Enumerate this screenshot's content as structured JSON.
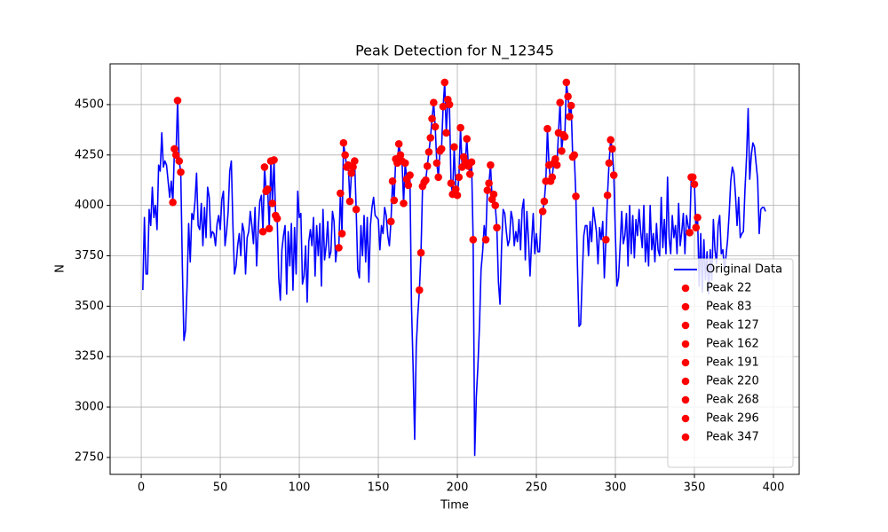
{
  "chart_data": {
    "type": "line",
    "title": "Peak Detection for N_12345",
    "xlabel": "Time",
    "ylabel": "N",
    "xlim": [
      -19.7,
      416.3
    ],
    "ylim": [
      2666,
      4702
    ],
    "xticks": [
      0,
      50,
      100,
      150,
      200,
      250,
      300,
      350,
      400
    ],
    "yticks": [
      2750,
      3000,
      3250,
      3500,
      3750,
      4000,
      4250,
      4500
    ],
    "grid": true,
    "legend": "lower right",
    "series": [
      {
        "name": "Original Data",
        "color": "#0000ff",
        "style": "line",
        "x": [
          1,
          2,
          3,
          4,
          5,
          6,
          7,
          8,
          9,
          10,
          11,
          12,
          13,
          14,
          15,
          16,
          17,
          18,
          19,
          20,
          21,
          22,
          23,
          24,
          25,
          26,
          27,
          28,
          29,
          30,
          31,
          32,
          33,
          34,
          35,
          36,
          37,
          38,
          39,
          40,
          41,
          42,
          43,
          44,
          45,
          46,
          47,
          48,
          49,
          50,
          51,
          52,
          53,
          54,
          55,
          56,
          57,
          58,
          59,
          60,
          61,
          62,
          63,
          64,
          65,
          66,
          67,
          68,
          69,
          70,
          71,
          72,
          73,
          74,
          75,
          76,
          77,
          78,
          79,
          80,
          81,
          82,
          83,
          84,
          85,
          86,
          87,
          88,
          89,
          90,
          91,
          92,
          93,
          94,
          95,
          96,
          97,
          98,
          99,
          100,
          101,
          102,
          103,
          104,
          105,
          106,
          107,
          108,
          109,
          110,
          111,
          112,
          113,
          114,
          115,
          116,
          117,
          118,
          119,
          120,
          121,
          122,
          123,
          124,
          125,
          126,
          127,
          128,
          129,
          130,
          131,
          132,
          133,
          134,
          135,
          136,
          137,
          138,
          139,
          140,
          141,
          142,
          143,
          144,
          145,
          146,
          147,
          148,
          149,
          150,
          151,
          152,
          153,
          154,
          155,
          156,
          157,
          158,
          159,
          160,
          161,
          162,
          163,
          164,
          165,
          166,
          167,
          168,
          169,
          170,
          171,
          172,
          173,
          174,
          175,
          176,
          177,
          178,
          179,
          180,
          181,
          182,
          183,
          184,
          185,
          186,
          187,
          188,
          189,
          190,
          191,
          192,
          193,
          194,
          195,
          196,
          197,
          198,
          199,
          200,
          201,
          202,
          203,
          204,
          205,
          206,
          207,
          208,
          209,
          210,
          211,
          212,
          213,
          214,
          215,
          216,
          217,
          218,
          219,
          220,
          221,
          222,
          223,
          224,
          225,
          226,
          227,
          228,
          229,
          230,
          231,
          232,
          233,
          234,
          235,
          236,
          237,
          238,
          239,
          240,
          241,
          242,
          243,
          244,
          245,
          246,
          247,
          248,
          249,
          250,
          251,
          252,
          253,
          254,
          255,
          256,
          257,
          258,
          259,
          260,
          261,
          262,
          263,
          264,
          265,
          266,
          267,
          268,
          269,
          270,
          271,
          272,
          273,
          274,
          275,
          276,
          277,
          278,
          279,
          280,
          281,
          282,
          283,
          284,
          285,
          286,
          287,
          288,
          289,
          290,
          291,
          292,
          293,
          294,
          295,
          296,
          297,
          298,
          299,
          300,
          301,
          302,
          303,
          304,
          305,
          306,
          307,
          308,
          309,
          310,
          311,
          312,
          313,
          314,
          315,
          316,
          317,
          318,
          319,
          320,
          321,
          322,
          323,
          324,
          325,
          326,
          327,
          328,
          329,
          330,
          331,
          332,
          333,
          334,
          335,
          336,
          337,
          338,
          339,
          340,
          341,
          342,
          343,
          344,
          345,
          346,
          347,
          348,
          349,
          350,
          351,
          352,
          353,
          354,
          355,
          356,
          357,
          358,
          359,
          360,
          361,
          362,
          363,
          364,
          365,
          366,
          367,
          368,
          369,
          370,
          371,
          372,
          373,
          374,
          375,
          376,
          377,
          378,
          379,
          380,
          381,
          382,
          383,
          384,
          385,
          386,
          387,
          388,
          389,
          390,
          391,
          392,
          393,
          394,
          395
        ],
        "values": [
          3580,
          3940,
          3660,
          3660,
          3980,
          3900,
          4090,
          3940,
          4000,
          3880,
          4200,
          4170,
          4360,
          4190,
          4220,
          4200,
          4120,
          4040,
          4120,
          4015,
          4280,
          4250,
          4520,
          4220,
          4165,
          3700,
          3330,
          3380,
          3600,
          3910,
          3720,
          3960,
          3930,
          4020,
          4160,
          3900,
          3880,
          4010,
          3800,
          3990,
          3840,
          4090,
          4040,
          3840,
          3870,
          3860,
          3800,
          3910,
          3950,
          3880,
          4030,
          4070,
          3800,
          3870,
          3970,
          4170,
          4220,
          3900,
          3660,
          3700,
          3800,
          3860,
          3750,
          3910,
          3870,
          3660,
          3840,
          3870,
          3970,
          3900,
          3810,
          3990,
          3700,
          3880,
          4020,
          4050,
          3870,
          4190,
          4070,
          4080,
          3885,
          4220,
          4010,
          4225,
          3950,
          3935,
          3640,
          3530,
          3780,
          3850,
          3900,
          3560,
          3870,
          3700,
          3910,
          3580,
          3890,
          3660,
          4070,
          3940,
          3960,
          3610,
          3650,
          3800,
          3520,
          3820,
          3880,
          3800,
          3940,
          3650,
          3900,
          3750,
          3910,
          3600,
          3980,
          3730,
          3800,
          3920,
          3740,
          3770,
          3970,
          3920,
          3720,
          3800,
          3790,
          4060,
          3860,
          4310,
          4250,
          4190,
          4200,
          4020,
          4160,
          4190,
          4220,
          3980,
          3680,
          3640,
          3900,
          3750,
          3950,
          3720,
          3940,
          3620,
          3900,
          3990,
          4040,
          3950,
          3940,
          3930,
          3780,
          3900,
          3860,
          3990,
          3950,
          3850,
          3800,
          3920,
          4120,
          4025,
          4230,
          4210,
          4305,
          4250,
          4220,
          4010,
          4210,
          4130,
          4100,
          4150,
          3500,
          3200,
          2840,
          3300,
          3460,
          3580,
          3765,
          4095,
          4115,
          4125,
          4195,
          4265,
          4335,
          4430,
          4510,
          4390,
          4210,
          4140,
          4270,
          4280,
          4490,
          4610,
          4360,
          4525,
          4500,
          4110,
          4055,
          4290,
          4080,
          4050,
          4140,
          4385,
          4190,
          4240,
          4215,
          4330,
          4195,
          4155,
          4215,
          3830,
          2760,
          3050,
          3200,
          3400,
          3680,
          3770,
          3900,
          3830,
          4075,
          4110,
          4200,
          4030,
          4055,
          4000,
          3890,
          3620,
          3510,
          3800,
          3980,
          3960,
          3870,
          3800,
          3830,
          3970,
          3930,
          3800,
          3870,
          3820,
          3930,
          3780,
          3980,
          4030,
          3730,
          3970,
          3830,
          3650,
          3820,
          3960,
          3760,
          3860,
          3770,
          3770,
          3960,
          3970,
          4020,
          4120,
          4380,
          4200,
          4120,
          4140,
          4210,
          4230,
          4200,
          4360,
          4510,
          4270,
          4350,
          4340,
          4610,
          4540,
          4440,
          4495,
          4240,
          4250,
          4045,
          3700,
          3400,
          3410,
          3640,
          3850,
          3900,
          3900,
          3750,
          3920,
          3820,
          3990,
          3930,
          3870,
          3710,
          3890,
          3830,
          3920,
          3640,
          3830,
          4050,
          4210,
          4325,
          4280,
          4150,
          3850,
          3600,
          3640,
          3800,
          3970,
          3810,
          3850,
          3960,
          3700,
          4000,
          3760,
          3950,
          3740,
          3930,
          3850,
          3980,
          3870,
          3790,
          4000,
          3720,
          3860,
          3700,
          4000,
          3780,
          3860,
          3720,
          3910,
          3780,
          3750,
          4040,
          3790,
          3930,
          3760,
          4140,
          3840,
          3760,
          3950,
          3840,
          3900,
          3760,
          4010,
          3800,
          3870,
          3960,
          3760,
          3950,
          3900,
          3865,
          4140,
          4140,
          4105,
          3890,
          3940,
          3600,
          3860,
          3570,
          3830,
          3630,
          3770,
          3560,
          3780,
          3630,
          3930,
          3780,
          3710,
          3900,
          3950,
          3760,
          3780,
          3680,
          3750,
          3830,
          3960,
          4120,
          4190,
          4160,
          4050,
          3900,
          4040,
          3840,
          3860,
          3870,
          4080,
          4240,
          4480,
          4130,
          4250,
          4310,
          4290,
          4210,
          4130,
          3860,
          3980,
          3990,
          3990,
          3970
        ]
      },
      {
        "name": "Peak 22",
        "color": "#ff0000",
        "style": "markers",
        "x": [
          20,
          21,
          22,
          23,
          24,
          25
        ],
        "values": [
          4015,
          4280,
          4250,
          4520,
          4220,
          4165
        ]
      },
      {
        "name": "Peak 83",
        "color": "#ff0000",
        "style": "markers",
        "x": [
          77,
          78,
          79,
          80,
          81,
          82,
          83,
          84,
          85,
          86
        ],
        "values": [
          3870,
          4190,
          4070,
          4080,
          3885,
          4220,
          4010,
          4225,
          3950,
          3935
        ]
      },
      {
        "name": "Peak 127",
        "color": "#ff0000",
        "style": "markers",
        "x": [
          125,
          126,
          127,
          128,
          129,
          130,
          131,
          132,
          133,
          134,
          135,
          136
        ],
        "values": [
          3790,
          4060,
          3860,
          4310,
          4250,
          4190,
          4200,
          4020,
          4160,
          4190,
          4220,
          3980
        ]
      },
      {
        "name": "Peak 162",
        "color": "#ff0000",
        "style": "markers",
        "x": [
          158,
          159,
          160,
          161,
          162,
          163,
          164,
          165,
          166,
          167,
          168,
          169,
          170
        ],
        "values": [
          3920,
          4120,
          4025,
          4230,
          4210,
          4305,
          4250,
          4220,
          4010,
          4210,
          4130,
          4100,
          4150
        ]
      },
      {
        "name": "Peak 191",
        "color": "#ff0000",
        "style": "markers",
        "x": [
          176,
          177,
          178,
          179,
          180,
          181,
          182,
          183,
          184,
          185,
          186,
          187,
          188,
          189,
          190,
          191,
          192,
          193,
          194,
          195,
          196,
          197,
          198,
          199,
          200,
          201,
          202,
          203,
          204,
          205,
          206,
          207,
          208,
          209
        ],
        "values": [
          3580,
          3765,
          4095,
          4115,
          4125,
          4195,
          4265,
          4335,
          4430,
          4510,
          4390,
          4210,
          4140,
          4270,
          4280,
          4490,
          4610,
          4360,
          4525,
          4500,
          4110,
          4055,
          4290,
          4080,
          4050,
          4140,
          4385,
          4190,
          4240,
          4215,
          4330,
          4195,
          4155,
          4215
        ]
      },
      {
        "name": "Peak 220",
        "color": "#ff0000",
        "style": "markers",
        "x": [
          210,
          218,
          219,
          220,
          221,
          222,
          223,
          224,
          225
        ],
        "values": [
          3830,
          3830,
          4075,
          4110,
          4200,
          4030,
          4055,
          4000,
          3890
        ]
      },
      {
        "name": "Peak 268",
        "color": "#ff0000",
        "style": "markers",
        "x": [
          254,
          255,
          256,
          257,
          258,
          259,
          260,
          261,
          262,
          263,
          264,
          265,
          266,
          267,
          268,
          269,
          270,
          271,
          272,
          273,
          274,
          275
        ],
        "values": [
          3970,
          4020,
          4120,
          4380,
          4200,
          4120,
          4140,
          4210,
          4230,
          4200,
          4360,
          4510,
          4270,
          4350,
          4340,
          4610,
          4540,
          4440,
          4495,
          4240,
          4250,
          4045
        ]
      },
      {
        "name": "Peak 296",
        "color": "#ff0000",
        "style": "markers",
        "x": [
          294,
          295,
          296,
          297,
          298,
          299
        ],
        "values": [
          3830,
          4050,
          4210,
          4325,
          4280,
          4150
        ]
      },
      {
        "name": "Peak 347",
        "color": "#ff0000",
        "style": "markers",
        "x": [
          347,
          348,
          349,
          350,
          351,
          352
        ],
        "values": [
          3865,
          4140,
          4140,
          4105,
          3890,
          3940
        ]
      }
    ]
  }
}
